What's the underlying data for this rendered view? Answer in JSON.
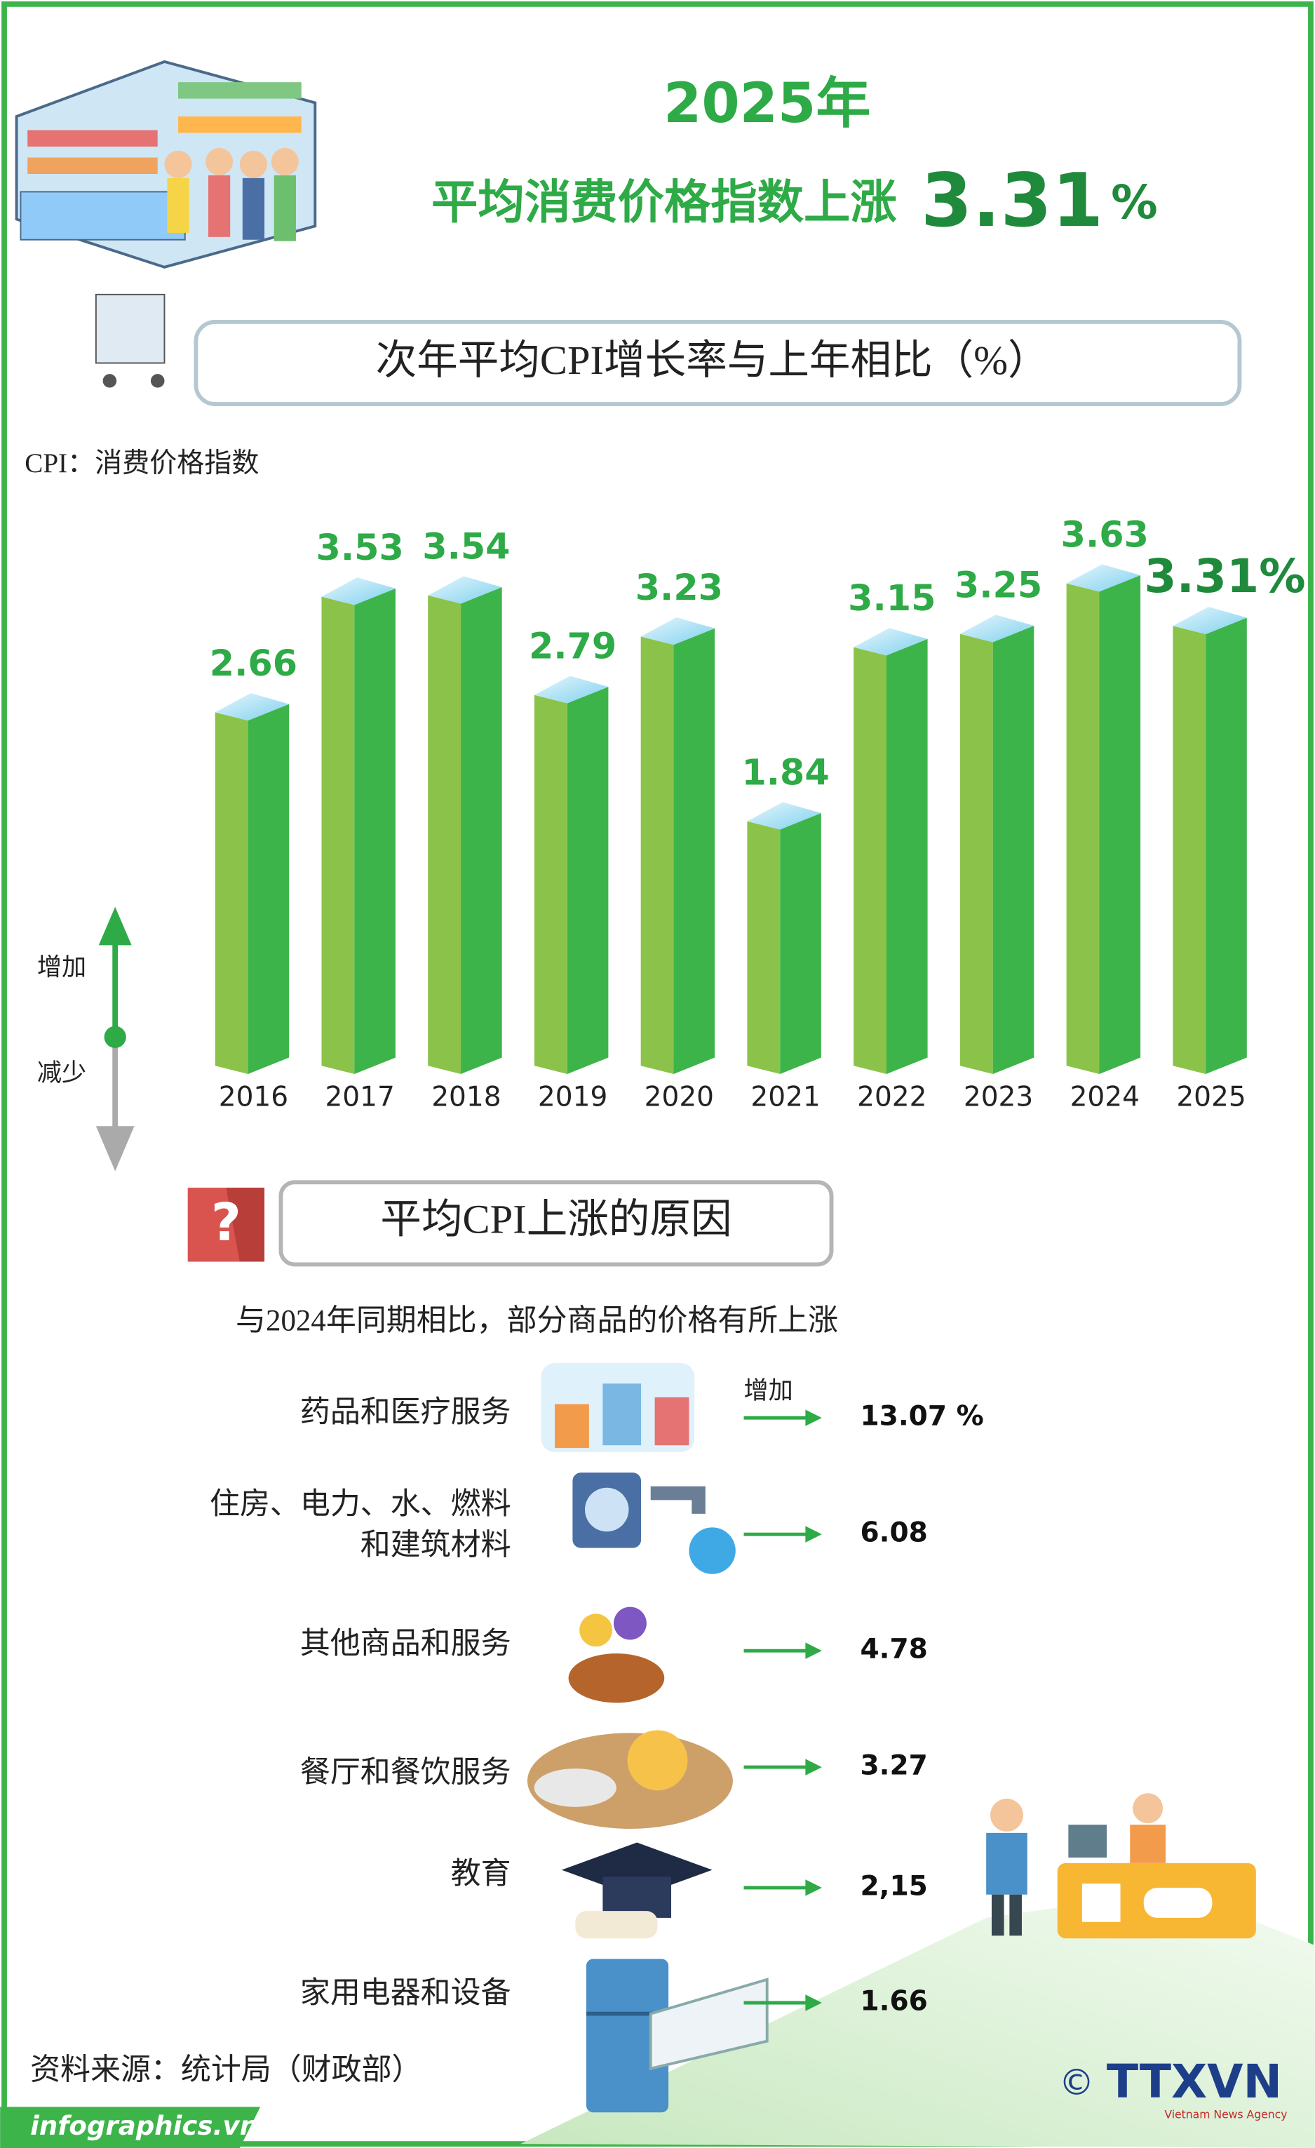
{
  "header": {
    "title_line1": "2025年",
    "title_line2": "平均消费价格指数上涨",
    "title_highlight": "3.31",
    "title_unit": "%"
  },
  "chart_data": {
    "type": "bar",
    "title": "次年平均CPI增长率与上年相比（%）",
    "subtitle": "CPI：消费价格指数",
    "categories": [
      "2016",
      "2017",
      "2018",
      "2019",
      "2020",
      "2021",
      "2022",
      "2023",
      "2024",
      "2025"
    ],
    "values": [
      2.66,
      3.53,
      3.54,
      2.79,
      3.23,
      1.84,
      3.15,
      3.25,
      3.63,
      3.31
    ],
    "value_labels": [
      "2.66",
      "3.53",
      "3.54",
      "2.79",
      "3.23",
      "1.84",
      "3.15",
      "3.25",
      "3.63",
      "3.31%"
    ],
    "ylim": [
      0,
      4
    ],
    "color": "#3cb44a",
    "indicator": {
      "up": "增加",
      "down": "减少"
    }
  },
  "reasons": {
    "title": "平均CPI上涨的原因",
    "subtitle": "与2024年同期相比，部分商品的价格有所上涨",
    "increase_label": "增加",
    "items": [
      {
        "label": [
          "药品和医疗服务"
        ],
        "value": "13.07 %"
      },
      {
        "label": [
          "住房、电力、水、燃料",
          "和建筑材料"
        ],
        "value": "6.08"
      },
      {
        "label": [
          "其他商品和服务"
        ],
        "value": "4.78"
      },
      {
        "label": [
          "餐厅和餐饮服务"
        ],
        "value": "3.27"
      },
      {
        "label": [
          "教育"
        ],
        "value": "2,15"
      },
      {
        "label": [
          "家用电器和设备"
        ],
        "value": "1.66"
      }
    ]
  },
  "footer": {
    "source": "资料来源：统计局（财政部）",
    "site": "infographics.vn",
    "copyright": "©",
    "logo": "TTXVN",
    "logo_sub": "Vietnam News Agency"
  }
}
